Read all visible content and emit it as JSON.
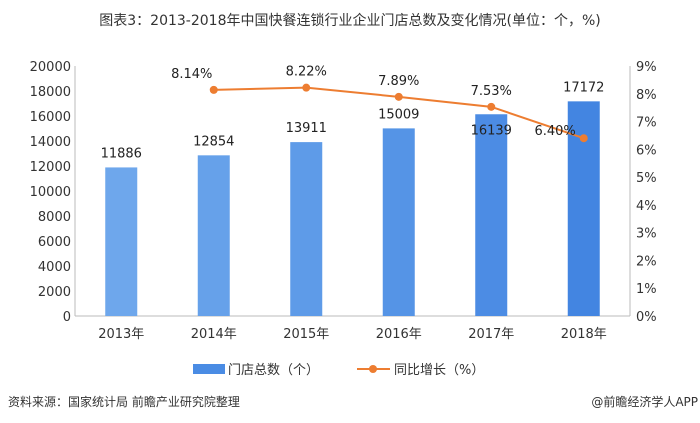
{
  "title": "图表3：2013-2018年中国快餐连锁行业企业门店总数及变化情况(单位：个，%)",
  "source": "资料来源：国家统计局 前瞻产业研究院整理",
  "credit": "@前瞻经济学人APP",
  "chart_data": {
    "type": "bar+line",
    "categories": [
      "2013年",
      "2014年",
      "2015年",
      "2016年",
      "2017年",
      "2018年"
    ],
    "series": [
      {
        "name": "门店总数（个）",
        "type": "bar",
        "axis": "left",
        "color": "#4a8ce4",
        "values": [
          11886,
          12854,
          13911,
          15009,
          16139,
          17172
        ],
        "labels": [
          "11886",
          "12854",
          "13911",
          "15009",
          "16139",
          "17172"
        ]
      },
      {
        "name": "同比增长（%）",
        "type": "line",
        "axis": "right",
        "color": "#ed7d31",
        "values": [
          null,
          8.14,
          8.22,
          7.89,
          7.53,
          6.4
        ],
        "labels": [
          "",
          "8.14%",
          "8.22%",
          "7.89%",
          "7.53%",
          "6.40%"
        ]
      }
    ],
    "left_axis": {
      "range": [
        0,
        20000
      ],
      "ticks": [
        "0",
        "2000",
        "4000",
        "6000",
        "8000",
        "10000",
        "12000",
        "14000",
        "16000",
        "18000",
        "20000"
      ]
    },
    "right_axis": {
      "range": [
        0,
        9
      ],
      "ticks": [
        "0%",
        "1%",
        "2%",
        "3%",
        "4%",
        "5%",
        "6%",
        "7%",
        "8%",
        "9%"
      ]
    },
    "legend": "bottom-center",
    "grid": false
  }
}
